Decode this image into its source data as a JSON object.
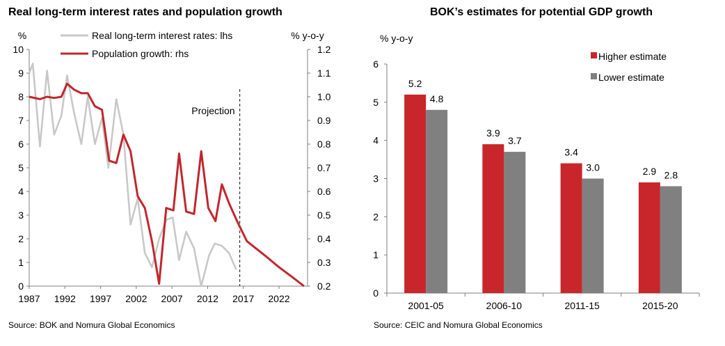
{
  "left_panel": {
    "title": "Real long-term interest rates and population growth",
    "source": "Source: BOK and Nomura Global Economics"
  },
  "right_panel": {
    "title": "BOK’s estimates for potential GDP growth",
    "source": "Source: CEIC and Nomura Global Economics"
  },
  "chart_data": [
    {
      "type": "line",
      "title": "Real long-term interest rates and population growth",
      "y_left_unit": "%",
      "y_right_unit": "% y-o-y",
      "xlim": [
        1987,
        2026
      ],
      "ylim_left": [
        0,
        10
      ],
      "ylim_right": [
        0.2,
        1.2
      ],
      "x_ticks": [
        "1987",
        "1992",
        "1997",
        "2002",
        "2007",
        "2012",
        "2017",
        "2022"
      ],
      "y_left_ticks": [
        "0",
        "1",
        "2",
        "3",
        "4",
        "5",
        "6",
        "7",
        "8",
        "9",
        "10"
      ],
      "y_right_ticks": [
        "0.2",
        "0.3",
        "0.4",
        "0.5",
        "0.6",
        "0.7",
        "0.8",
        "0.9",
        "1.0",
        "1.1",
        "1.2"
      ],
      "projection_label": "Projection",
      "projection_start": 2016.5,
      "grid": false,
      "legend": "top",
      "series": [
        {
          "name": "Real long-term interest rates: lhs",
          "axis": "left",
          "color": "#c8c8c8",
          "points": [
            [
              1987,
              9.0
            ],
            [
              1987.5,
              9.4
            ],
            [
              1988.5,
              5.9
            ],
            [
              1989.5,
              9.1
            ],
            [
              1990.5,
              6.4
            ],
            [
              1991.5,
              7.2
            ],
            [
              1992.3,
              8.9
            ],
            [
              1993.3,
              7.3
            ],
            [
              1994.3,
              6.0
            ],
            [
              1995.2,
              8.0
            ],
            [
              1996.2,
              6.0
            ],
            [
              1997.2,
              7.1
            ],
            [
              1998.1,
              5.0
            ],
            [
              1999.2,
              7.9
            ],
            [
              2000.2,
              6.4
            ],
            [
              2001.2,
              2.6
            ],
            [
              2002.2,
              3.7
            ],
            [
              2003.2,
              1.4
            ],
            [
              2004.2,
              0.8
            ],
            [
              2005.2,
              2.0
            ],
            [
              2006.2,
              2.8
            ],
            [
              2007.1,
              2.9
            ],
            [
              2008.0,
              1.1
            ],
            [
              2009.0,
              2.3
            ],
            [
              2010.1,
              1.6
            ],
            [
              2011.1,
              0.0
            ],
            [
              2012.2,
              1.3
            ],
            [
              2013.0,
              1.8
            ],
            [
              2014.0,
              1.7
            ],
            [
              2015.0,
              1.4
            ],
            [
              2016.0,
              0.7
            ]
          ]
        },
        {
          "name": "Population growth: rhs",
          "axis": "right",
          "color": "#c0262d",
          "points": [
            [
              1987,
              1.0
            ],
            [
              1988.5,
              0.99
            ],
            [
              1989.5,
              1.0
            ],
            [
              1990.5,
              0.995
            ],
            [
              1991.5,
              1.0
            ],
            [
              1992.3,
              1.055
            ],
            [
              1993.3,
              1.03
            ],
            [
              1994.3,
              1.015
            ],
            [
              1995.2,
              1.015
            ],
            [
              1996.2,
              0.96
            ],
            [
              1997.2,
              0.945
            ],
            [
              1998.2,
              0.73
            ],
            [
              1999.2,
              0.72
            ],
            [
              2000.2,
              0.84
            ],
            [
              2001.2,
              0.77
            ],
            [
              2002.2,
              0.58
            ],
            [
              2003.2,
              0.53
            ],
            [
              2004.2,
              0.39
            ],
            [
              2005.2,
              0.21
            ],
            [
              2006.2,
              0.53
            ],
            [
              2007.2,
              0.52
            ],
            [
              2008.0,
              0.76
            ],
            [
              2009.0,
              0.515
            ],
            [
              2010.1,
              0.505
            ],
            [
              2011.1,
              0.77
            ],
            [
              2012.1,
              0.53
            ],
            [
              2013.1,
              0.475
            ],
            [
              2014.0,
              0.63
            ],
            [
              2015.0,
              0.55
            ],
            [
              2016.2,
              0.47
            ],
            [
              2017.5,
              0.39
            ],
            [
              2020.0,
              0.33
            ],
            [
              2022.0,
              0.28
            ],
            [
              2024.0,
              0.235
            ],
            [
              2025.5,
              0.2
            ]
          ]
        }
      ]
    },
    {
      "type": "bar",
      "title": "BOK’s estimates for potential GDP growth",
      "ylabel": "% y-o-y",
      "ylim": [
        0,
        6
      ],
      "y_ticks": [
        "0",
        "1",
        "2",
        "3",
        "4",
        "5",
        "6"
      ],
      "categories": [
        "2001-05",
        "2006-10",
        "2011-15",
        "2015-20"
      ],
      "grid": false,
      "legend": "top-right",
      "series": [
        {
          "name": "Higher estimate",
          "color": "#c8262b",
          "values": [
            5.2,
            3.9,
            3.4,
            2.9
          ],
          "labels": [
            "5.2",
            "3.9",
            "3.4",
            "2.9"
          ]
        },
        {
          "name": "Lower estimate",
          "color": "#808080",
          "values": [
            4.8,
            3.7,
            3.0,
            2.8
          ],
          "labels": [
            "4.8",
            "3.7",
            "3.0",
            "2.8"
          ]
        }
      ]
    }
  ]
}
